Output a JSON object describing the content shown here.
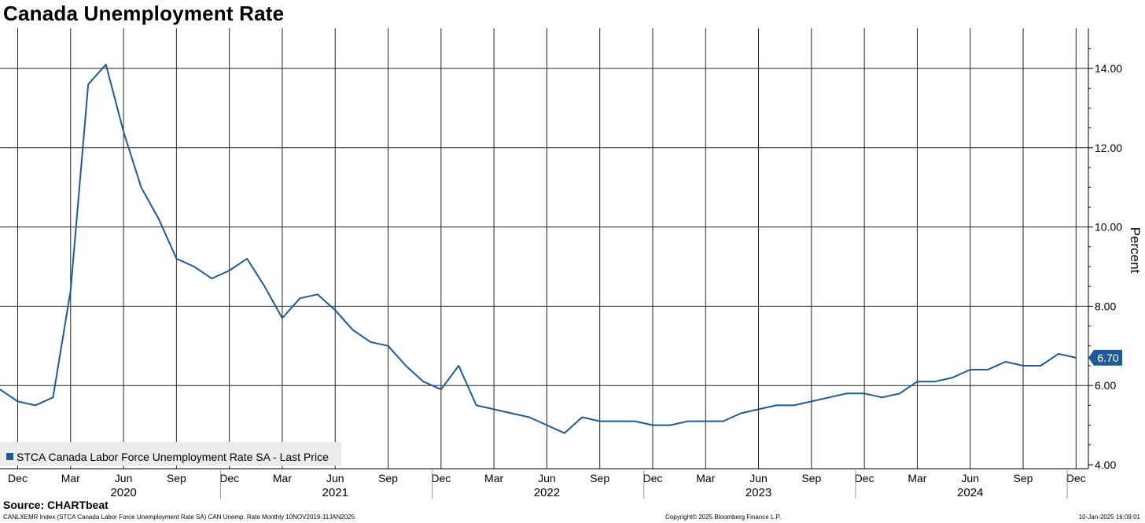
{
  "header": {
    "title": "Canada Unemployment Rate"
  },
  "footer": {
    "source": "Source: CHARTbeat",
    "description": "CANLXEMR Index (STCA Canada Labor Force Unemployment Rate SA) CAN Unemp. Rate  Monthly 10NOV2019-11JAN2025",
    "copyright": "Copyright© 2025 Bloomberg Finance L.P.",
    "timestamp": "10-Jan-2025 16:09:01"
  },
  "chart_data": {
    "type": "line",
    "title": "Canada Unemployment Rate",
    "ylabel": "Percent",
    "ylim": [
      4.0,
      15.0
    ],
    "yticks": [
      "4.00",
      "6.00",
      "8.00",
      "10.00",
      "12.00",
      "14.00"
    ],
    "grid": true,
    "legend_position": "bottom-left",
    "last_value_label": "6.70",
    "month_ticks": [
      "Dec",
      "Mar",
      "Jun",
      "Sep",
      "Dec",
      "Mar",
      "Jun",
      "Sep",
      "Dec",
      "Mar",
      "Jun",
      "Sep",
      "Dec",
      "Mar",
      "Jun",
      "Sep",
      "Dec",
      "Mar",
      "Jun",
      "Sep",
      "Dec"
    ],
    "year_labels": [
      "2020",
      "2021",
      "2022",
      "2023",
      "2024"
    ],
    "series": [
      {
        "name": "STCA Canada Labor Force Unemployment Rate SA - Last Price",
        "color": "#1f5a96",
        "x": [
          "2019-11",
          "2019-12",
          "2020-01",
          "2020-02",
          "2020-03",
          "2020-04",
          "2020-05",
          "2020-06",
          "2020-07",
          "2020-08",
          "2020-09",
          "2020-10",
          "2020-11",
          "2020-12",
          "2021-01",
          "2021-02",
          "2021-03",
          "2021-04",
          "2021-05",
          "2021-06",
          "2021-07",
          "2021-08",
          "2021-09",
          "2021-10",
          "2021-11",
          "2021-12",
          "2022-01",
          "2022-02",
          "2022-03",
          "2022-04",
          "2022-05",
          "2022-06",
          "2022-07",
          "2022-08",
          "2022-09",
          "2022-10",
          "2022-11",
          "2022-12",
          "2023-01",
          "2023-02",
          "2023-03",
          "2023-04",
          "2023-05",
          "2023-06",
          "2023-07",
          "2023-08",
          "2023-09",
          "2023-10",
          "2023-11",
          "2023-12",
          "2024-01",
          "2024-02",
          "2024-03",
          "2024-04",
          "2024-05",
          "2024-06",
          "2024-07",
          "2024-08",
          "2024-09",
          "2024-10",
          "2024-11",
          "2024-12"
        ],
        "values": [
          5.9,
          5.6,
          5.5,
          5.7,
          8.4,
          13.6,
          14.1,
          12.4,
          11.0,
          10.2,
          9.2,
          9.0,
          8.7,
          8.9,
          9.2,
          8.5,
          7.7,
          8.2,
          8.3,
          7.9,
          7.4,
          7.1,
          7.0,
          6.5,
          6.1,
          5.9,
          6.5,
          5.5,
          5.4,
          5.3,
          5.2,
          5.0,
          4.8,
          5.2,
          5.1,
          5.1,
          5.1,
          5.0,
          5.0,
          5.1,
          5.1,
          5.1,
          5.3,
          5.4,
          5.5,
          5.5,
          5.6,
          5.7,
          5.8,
          5.8,
          5.7,
          5.8,
          6.1,
          6.1,
          6.2,
          6.4,
          6.4,
          6.6,
          6.5,
          6.5,
          6.8,
          6.7
        ]
      }
    ]
  }
}
